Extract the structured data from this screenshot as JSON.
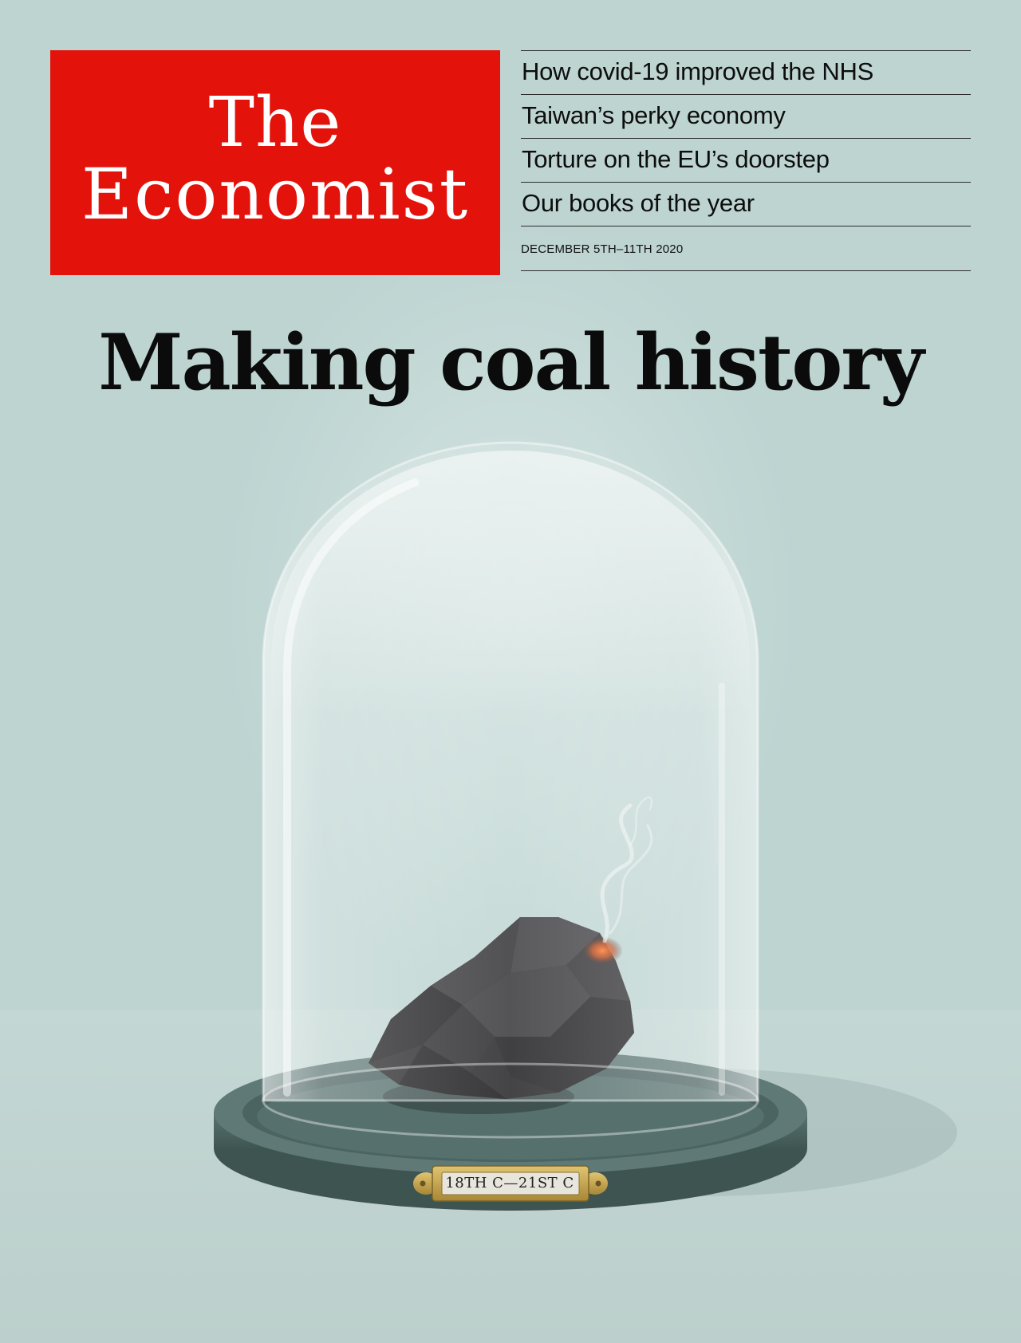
{
  "masthead": {
    "line1": "The",
    "line2": "Economist"
  },
  "headlines": [
    "How covid-19 improved the NHS",
    "Taiwan’s perky economy",
    "Torture on the EU’s doorstep",
    "Our books of the year"
  ],
  "issue_date": "DECEMBER 5TH–11TH 2020",
  "cover_title": "Making coal history",
  "illustration": {
    "subject": "lump of coal under a glass bell jar",
    "plaque_text": "18TH C—21ST C"
  },
  "colors": {
    "brand_red": "#e3120b",
    "background": "#bdd4d1",
    "base": "#4e6663",
    "plaque": "#c7a650"
  }
}
